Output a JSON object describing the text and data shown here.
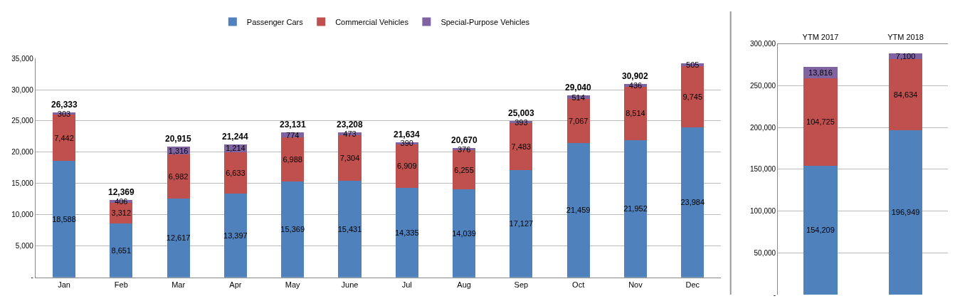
{
  "chart_data": [
    {
      "type": "bar",
      "stacked": true,
      "legend": "top",
      "grid": "y",
      "categories": [
        "Jan",
        "Feb",
        "Mar",
        "Apr",
        "May",
        "June",
        "Jul",
        "Aug",
        "Sep",
        "Oct",
        "Nov",
        "Dec"
      ],
      "series": [
        {
          "name": "Passenger Cars",
          "color": "#4f81bd",
          "values": [
            18588,
            8651,
            12617,
            13397,
            15369,
            15431,
            14335,
            14039,
            17127,
            21459,
            21952,
            23984
          ],
          "value_labels": [
            "18,588",
            "8,651",
            "12,617",
            "13,397",
            "15,369",
            "15,431",
            "14,335",
            "14,039",
            "17,127",
            "21,459",
            "21,952",
            "23,984"
          ]
        },
        {
          "name": "Commercial Vehicles",
          "color": "#c0504d",
          "values": [
            7442,
            3312,
            6982,
            6633,
            6988,
            7304,
            6909,
            6255,
            7483,
            7067,
            8514,
            9745
          ],
          "value_labels": [
            "7,442",
            "3,312",
            "6,982",
            "6,633",
            "6,988",
            "7,304",
            "6,909",
            "6,255",
            "7,483",
            "7,067",
            "8,514",
            "9,745"
          ]
        },
        {
          "name": "Special-Purpose Vehicles",
          "color": "#8064a2",
          "values": [
            303,
            406,
            1316,
            1214,
            774,
            473,
            390,
            376,
            393,
            514,
            436,
            505
          ],
          "value_labels": [
            "303",
            "406",
            "1,316",
            "1,214",
            "774",
            "473",
            "390",
            "376",
            "393",
            "514",
            "436",
            "505"
          ]
        }
      ],
      "totals": [
        "26,333",
        "12,369",
        "20,915",
        "21,244",
        "23,131",
        "23,208",
        "21,634",
        "20,670",
        "25,003",
        "29,040",
        "30,902",
        null
      ],
      "ylim": [
        0,
        35000
      ],
      "yticks": [
        {
          "value": 0,
          "label": "-"
        },
        {
          "value": 5000,
          "label": "5,000"
        },
        {
          "value": 10000,
          "label": "10,000"
        },
        {
          "value": 15000,
          "label": "15,000"
        },
        {
          "value": 20000,
          "label": "20,000"
        },
        {
          "value": 25000,
          "label": "25,000"
        },
        {
          "value": 30000,
          "label": "30,000"
        },
        {
          "value": 35000,
          "label": "35,000"
        }
      ]
    },
    {
      "type": "bar",
      "stacked": true,
      "grid": "y",
      "categories": [
        "YTM 2017",
        "YTM 2018"
      ],
      "series": [
        {
          "color": "#4f81bd",
          "values": [
            154209,
            196949
          ],
          "value_labels": [
            "154,209",
            "196,949"
          ]
        },
        {
          "color": "#c0504d",
          "values": [
            104725,
            84634
          ],
          "value_labels": [
            "104,725",
            "84,634"
          ]
        },
        {
          "color": "#8064a2",
          "values": [
            13816,
            7100
          ],
          "value_labels": [
            "13,816",
            "7,100"
          ]
        }
      ],
      "ylim": [
        0,
        300000
      ],
      "yticks": [
        {
          "value": 0,
          "label": "-"
        },
        {
          "value": 50000,
          "label": "50,000"
        },
        {
          "value": 100000,
          "label": "100,000"
        },
        {
          "value": 150000,
          "label": "150,000"
        },
        {
          "value": 200000,
          "label": "200,000"
        },
        {
          "value": 250000,
          "label": "250,000"
        },
        {
          "value": 300000,
          "label": "300,000"
        }
      ]
    }
  ]
}
